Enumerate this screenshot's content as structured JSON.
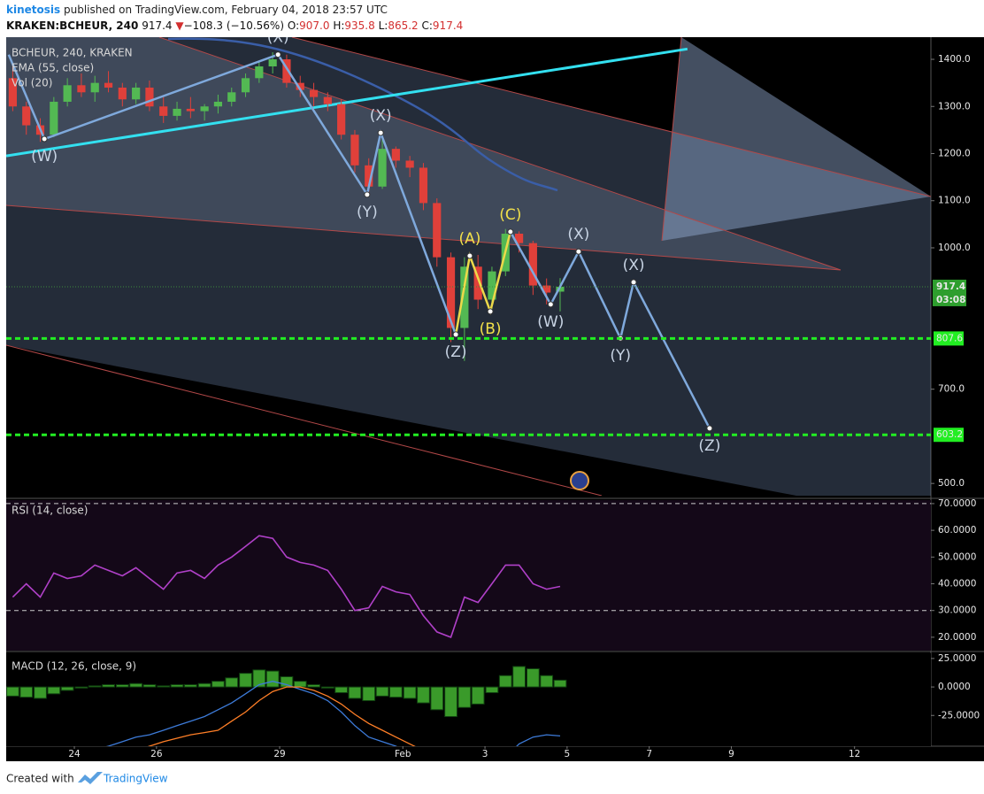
{
  "header": {
    "author": "kinetosis",
    "published": "published on TradingView.com, February 04, 2018 23:57 UTC",
    "symbol": "KRAKEN:BCHEUR, 240",
    "last": "917.4",
    "arrow": "▼",
    "change": "−108.3 (−10.56%)",
    "o_label": "O:",
    "o": "907.0",
    "h_label": "H:",
    "h": "935.8",
    "l_label": "L:",
    "l": "865.2",
    "c_label": "C:",
    "c": "917.4"
  },
  "chart_data": [
    {
      "type": "candlestick",
      "title": "BCHEUR, 240, KRAKEN",
      "indicators": [
        "EMA (55, close)",
        "Vol (20)"
      ],
      "x": [
        22.5,
        22.83,
        23.17,
        23.5,
        23.83,
        24.17,
        24.5,
        24.83,
        25.17,
        25.5,
        25.83,
        26.17,
        26.5,
        26.83,
        27.17,
        27.5,
        27.83,
        28.17,
        28.5,
        28.83,
        29.17,
        29.5,
        29.83,
        30.17,
        30.5,
        30.83,
        31.17,
        31.5,
        31.83,
        32.17,
        32.5,
        32.83,
        33.17,
        33.5,
        33.83,
        34.17,
        34.5,
        34.83,
        35.17,
        35.5,
        35.83
      ],
      "open": [
        1360,
        1300,
        1260,
        1240,
        1310,
        1345,
        1330,
        1350,
        1340,
        1315,
        1340,
        1300,
        1280,
        1295,
        1290,
        1300,
        1310,
        1330,
        1360,
        1385,
        1400,
        1350,
        1335,
        1320,
        1305,
        1240,
        1175,
        1130,
        1210,
        1185,
        1170,
        1095,
        980,
        830,
        960,
        890,
        950,
        1030,
        1010,
        920,
        907.0
      ],
      "high": [
        1390,
        1310,
        1275,
        1320,
        1360,
        1370,
        1365,
        1375,
        1350,
        1350,
        1355,
        1320,
        1310,
        1320,
        1305,
        1325,
        1340,
        1370,
        1395,
        1415,
        1410,
        1365,
        1350,
        1330,
        1315,
        1250,
        1190,
        1240,
        1215,
        1195,
        1180,
        1105,
        990,
        980,
        985,
        960,
        1040,
        1035,
        1015,
        935,
        935.8
      ],
      "low": [
        1290,
        1240,
        1225,
        1235,
        1300,
        1320,
        1310,
        1330,
        1300,
        1305,
        1290,
        1265,
        1270,
        1275,
        1270,
        1285,
        1300,
        1320,
        1350,
        1370,
        1340,
        1320,
        1300,
        1290,
        1230,
        1160,
        1110,
        1125,
        1170,
        1150,
        1080,
        960,
        800,
        760,
        870,
        860,
        940,
        990,
        900,
        880,
        865.2
      ],
      "close": [
        1300,
        1260,
        1240,
        1310,
        1345,
        1330,
        1350,
        1340,
        1315,
        1340,
        1300,
        1280,
        1295,
        1290,
        1300,
        1310,
        1330,
        1360,
        1385,
        1400,
        1350,
        1335,
        1320,
        1305,
        1240,
        1175,
        1130,
        1210,
        1185,
        1170,
        1095,
        980,
        830,
        960,
        890,
        950,
        1030,
        1010,
        920,
        905,
        917.4
      ],
      "up_color": "#53b953",
      "down_color": "#e0403a",
      "background": "#000000",
      "xlim": [
        22.34,
        44.86
      ],
      "ylim": [
        474,
        1447
      ],
      "yticks": [
        {
          "value": 500,
          "label": "500.0"
        },
        {
          "value": 700,
          "label": "700.0"
        },
        {
          "value": 1000,
          "label": "1000.0"
        },
        {
          "value": 1100,
          "label": "1100.0"
        },
        {
          "value": 1200,
          "label": "1200.0"
        },
        {
          "value": 1300,
          "label": "1300.0"
        },
        {
          "value": 1400,
          "label": "1400.0"
        }
      ],
      "trendline": {
        "x": [
          22.34,
          38.93
        ],
        "values": [
          1195,
          1422
        ],
        "color": "#33e0f0"
      },
      "levels": [
        807.6,
        603.2
      ],
      "level_color": "#22ee22",
      "current_price": 917.4,
      "countdown": "03:08",
      "wave_lines": [
        {
          "color": "#7fa9dc",
          "x": [
            22.4,
            23.27,
            28.96,
            31.13,
            31.46,
            33.29
          ],
          "values": [
            1410,
            1231,
            1410,
            1113,
            1244,
            816
          ]
        },
        {
          "color": "#ecd94a",
          "x": [
            33.29,
            33.63,
            34.13,
            34.62
          ],
          "values": [
            816,
            983,
            865,
            1034
          ]
        },
        {
          "color": "#7fa9dc",
          "x": [
            34.62,
            35.6,
            36.28,
            37.3,
            37.62,
            39.47
          ],
          "values": [
            1034,
            880,
            992,
            808,
            927,
            617
          ]
        }
      ],
      "annotations": [
        {
          "text": "(W)",
          "x": 23.27,
          "y": 1231,
          "position": "below",
          "color": "#c8d4e4"
        },
        {
          "text": "(X)",
          "x": 28.96,
          "y": 1410,
          "position": "above",
          "color": "#c8d4e4"
        },
        {
          "text": "(Y)",
          "x": 31.13,
          "y": 1113,
          "position": "below",
          "color": "#c8d4e4"
        },
        {
          "text": "(X)",
          "x": 31.46,
          "y": 1244,
          "position": "above",
          "color": "#c8d4e4"
        },
        {
          "text": "(Z)",
          "x": 33.29,
          "y": 816,
          "position": "below",
          "color": "#c8d4e4"
        },
        {
          "text": "(A)",
          "x": 33.63,
          "y": 983,
          "position": "above",
          "color": "#f2e04a"
        },
        {
          "text": "(B)",
          "x": 34.13,
          "y": 865,
          "position": "below",
          "color": "#f2e04a"
        },
        {
          "text": "(C)",
          "x": 34.62,
          "y": 1034,
          "position": "above",
          "color": "#f2e04a"
        },
        {
          "text": "(W)",
          "x": 35.6,
          "y": 880,
          "position": "below",
          "color": "#c8d4e4"
        },
        {
          "text": "(X)",
          "x": 36.28,
          "y": 992,
          "position": "above",
          "color": "#c8d4e4"
        },
        {
          "text": "(Y)",
          "x": 37.3,
          "y": 808,
          "position": "below",
          "color": "#c8d4e4"
        },
        {
          "text": "(X)",
          "x": 37.62,
          "y": 927,
          "position": "above",
          "color": "#c8d4e4"
        },
        {
          "text": "(Z)",
          "x": 39.47,
          "y": 617,
          "position": "below",
          "color": "#c8d4e4"
        }
      ]
    },
    {
      "type": "line",
      "title": "RSI (14, close)",
      "x": [
        22.5,
        22.83,
        23.17,
        23.5,
        23.83,
        24.17,
        24.5,
        24.83,
        25.17,
        25.5,
        25.83,
        26.17,
        26.5,
        26.83,
        27.17,
        27.5,
        27.83,
        28.17,
        28.5,
        28.83,
        29.17,
        29.5,
        29.83,
        30.17,
        30.5,
        30.83,
        31.17,
        31.5,
        31.83,
        32.17,
        32.5,
        32.83,
        33.17,
        33.5,
        33.83,
        34.17,
        34.5,
        34.83,
        35.17,
        35.5,
        35.83
      ],
      "values": [
        35,
        40,
        35,
        44,
        42,
        43,
        47,
        45,
        43,
        46,
        42,
        38,
        44,
        45,
        42,
        47,
        50,
        54,
        58,
        57,
        50,
        48,
        47,
        45,
        38,
        30,
        31,
        39,
        37,
        36,
        28,
        22,
        20,
        35,
        33,
        40,
        47,
        47,
        40,
        38,
        39
      ],
      "color": "#b040c8",
      "background": "#140818",
      "levels": [
        30,
        70
      ],
      "xlim": [
        22.34,
        44.86
      ],
      "ylim": [
        15,
        71.3
      ],
      "yticks": [
        {
          "value": 20,
          "label": "20.0000"
        },
        {
          "value": 30,
          "label": "30.0000"
        },
        {
          "value": 40,
          "label": "40.0000"
        },
        {
          "value": 50,
          "label": "50.0000"
        },
        {
          "value": 60,
          "label": "60.0000"
        },
        {
          "value": 70,
          "label": "70.0000"
        }
      ]
    },
    {
      "type": "macd",
      "title": "MACD (12, 26, close, 9)",
      "x": [
        22.5,
        22.83,
        23.17,
        23.5,
        23.83,
        24.17,
        24.5,
        24.83,
        25.17,
        25.5,
        25.83,
        26.17,
        26.5,
        26.83,
        27.17,
        27.5,
        27.83,
        28.17,
        28.5,
        28.83,
        29.17,
        29.5,
        29.83,
        30.17,
        30.5,
        30.83,
        31.17,
        31.5,
        31.83,
        32.17,
        32.5,
        32.83,
        33.17,
        33.5,
        33.83,
        34.17,
        34.5,
        34.83,
        35.17,
        35.5,
        35.83
      ],
      "histogram": [
        -8,
        -9,
        -10,
        -6,
        -3,
        -1,
        1,
        2,
        2,
        3,
        2,
        1,
        2,
        2,
        3,
        5,
        8,
        12,
        15,
        14,
        9,
        5,
        2,
        -1,
        -5,
        -10,
        -12,
        -8,
        -9,
        -10,
        -14,
        -20,
        -26,
        -18,
        -15,
        -5,
        10,
        18,
        16,
        10,
        6
      ],
      "macd": [
        -75,
        -72,
        -70,
        -66,
        -62,
        -58,
        -55,
        -52,
        -48,
        -44,
        -42,
        -38,
        -34,
        -30,
        -26,
        -20,
        -14,
        -6,
        2,
        5,
        2,
        -2,
        -6,
        -12,
        -22,
        -34,
        -44,
        -48,
        -52,
        -58,
        -66,
        -78,
        -95,
        -92,
        -90,
        -80,
        -62,
        -50,
        -44,
        -42,
        -43
      ],
      "signal": [
        -85,
        -84,
        -82,
        -80,
        -78,
        -75,
        -72,
        -68,
        -62,
        -56,
        -52,
        -48,
        -45,
        -42,
        -40,
        -38,
        -30,
        -22,
        -12,
        -4,
        0,
        0,
        -3,
        -8,
        -15,
        -24,
        -32,
        -38,
        -44,
        -50,
        -56,
        -62,
        -72,
        -80,
        -84,
        -85,
        -80,
        -74,
        -68,
        -64,
        -60
      ],
      "histogram_color": "#3a9a2a",
      "macd_color": "#3d7bd9",
      "signal_color": "#ff7f27",
      "background": "#000000",
      "xlim": [
        22.34,
        44.86
      ],
      "ylim": [
        -52,
        29.6
      ],
      "yticks": [
        {
          "value": -25,
          "label": "-25.0000"
        },
        {
          "value": 0,
          "label": "0.0000"
        },
        {
          "value": 25,
          "label": "25.0000"
        }
      ],
      "xticks": [
        24,
        26,
        29,
        {
          "value": 32,
          "label": "Feb"
        },
        {
          "value": 34,
          "label": "3"
        },
        {
          "value": 36,
          "label": "5"
        },
        {
          "value": 38,
          "label": "7"
        },
        {
          "value": 40,
          "label": "9"
        },
        {
          "value": 43,
          "label": "12"
        }
      ]
    }
  ],
  "footer": {
    "created": "Created with",
    "brand": "TradingView"
  }
}
